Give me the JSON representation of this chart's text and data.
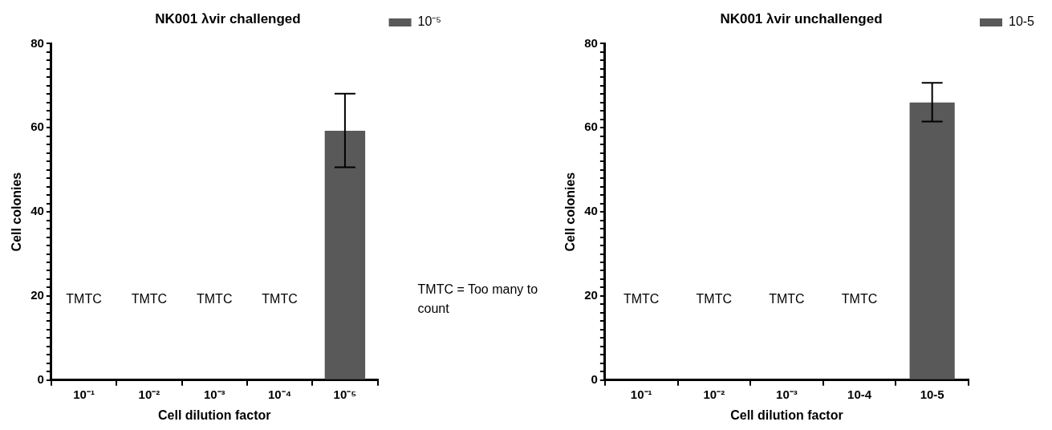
{
  "chart_data": [
    {
      "type": "bar",
      "title": "NK001 λvir challenged",
      "xlabel": "Cell dilution factor",
      "ylabel": "Cell colonies",
      "categories": [
        "10⁻¹",
        "10⁻²",
        "10⁻³",
        "10⁻⁴",
        "10⁻⁵"
      ],
      "series": [
        {
          "name": "10⁻⁵",
          "color": "#595959",
          "values": [
            null,
            null,
            null,
            null,
            59.3
          ],
          "errors": [
            null,
            null,
            null,
            null,
            [
              50.6,
              68.1
            ]
          ]
        }
      ],
      "ylim": [
        0,
        80
      ],
      "yticks": [
        0,
        {
          "value": 2,
          "label": null
        },
        {
          "value": 4,
          "label": null
        },
        {
          "value": 6,
          "label": null
        },
        {
          "value": 8,
          "label": null
        },
        {
          "value": 10,
          "label": null
        },
        {
          "value": 12,
          "label": null
        },
        {
          "value": 14,
          "label": null
        },
        {
          "value": 16,
          "label": null
        },
        {
          "value": 18,
          "label": null
        },
        20,
        {
          "value": 22,
          "label": null
        },
        {
          "value": 24,
          "label": null
        },
        {
          "value": 26,
          "label": null
        },
        {
          "value": 28,
          "label": null
        },
        {
          "value": 30,
          "label": null
        },
        {
          "value": 32,
          "label": null
        },
        {
          "value": 34,
          "label": null
        },
        {
          "value": 36,
          "label": null
        },
        {
          "value": 38,
          "label": null
        },
        40,
        {
          "value": 42,
          "label": null
        },
        {
          "value": 44,
          "label": null
        },
        {
          "value": 46,
          "label": null
        },
        {
          "value": 48,
          "label": null
        },
        {
          "value": 50,
          "label": null
        },
        {
          "value": 52,
          "label": null
        },
        {
          "value": 54,
          "label": null
        },
        {
          "value": 56,
          "label": null
        },
        {
          "value": 58,
          "label": null
        },
        60,
        {
          "value": 62,
          "label": null
        },
        {
          "value": 64,
          "label": null
        },
        {
          "value": 66,
          "label": null
        },
        {
          "value": 68,
          "label": null
        },
        {
          "value": 70,
          "label": null
        },
        {
          "value": 72,
          "label": null
        },
        {
          "value": 74,
          "label": null
        },
        {
          "value": 76,
          "label": null
        },
        {
          "value": 78,
          "label": null
        },
        80
      ],
      "legend": "top right",
      "annotations": [
        "TMTC",
        "TMTC",
        "TMTC",
        "TMTC",
        "TMTC = Too many to count"
      ]
    },
    {
      "type": "bar",
      "title": "NK001 λvir unchallenged",
      "xlabel": "Cell dilution factor",
      "ylabel": "Cell colonies",
      "categories": [
        "10⁻¹",
        "10⁻²",
        "10⁻³",
        "10-4",
        "10-5"
      ],
      "series": [
        {
          "name": "10-5",
          "color": "#595959",
          "values": [
            null,
            null,
            null,
            null,
            66.0
          ],
          "errors": [
            null,
            null,
            null,
            null,
            [
              61.5,
              70.7
            ]
          ]
        }
      ],
      "ylim": [
        0,
        80
      ],
      "yticks": [
        0,
        {
          "value": 2,
          "label": null
        },
        {
          "value": 4,
          "label": null
        },
        {
          "value": 6,
          "label": null
        },
        {
          "value": 8,
          "label": null
        },
        {
          "value": 10,
          "label": null
        },
        {
          "value": 12,
          "label": null
        },
        {
          "value": 14,
          "label": null
        },
        {
          "value": 16,
          "label": null
        },
        {
          "value": 18,
          "label": null
        },
        20,
        {
          "value": 22,
          "label": null
        },
        {
          "value": 24,
          "label": null
        },
        {
          "value": 26,
          "label": null
        },
        {
          "value": 28,
          "label": null
        },
        {
          "value": 30,
          "label": null
        },
        {
          "value": 32,
          "label": null
        },
        {
          "value": 34,
          "label": null
        },
        {
          "value": 36,
          "label": null
        },
        {
          "value": 38,
          "label": null
        },
        40,
        {
          "value": 42,
          "label": null
        },
        {
          "value": 44,
          "label": null
        },
        {
          "value": 46,
          "label": null
        },
        {
          "value": 48,
          "label": null
        },
        {
          "value": 50,
          "label": null
        },
        {
          "value": 52,
          "label": null
        },
        {
          "value": 54,
          "label": null
        },
        {
          "value": 56,
          "label": null
        },
        {
          "value": 58,
          "label": null
        },
        60,
        {
          "value": 62,
          "label": null
        },
        {
          "value": 64,
          "label": null
        },
        {
          "value": 66,
          "label": null
        },
        {
          "value": 68,
          "label": null
        },
        {
          "value": 70,
          "label": null
        },
        {
          "value": 72,
          "label": null
        },
        {
          "value": 74,
          "label": null
        },
        {
          "value": 76,
          "label": null
        },
        {
          "value": 78,
          "label": null
        },
        80
      ],
      "legend": "top right",
      "annotations": [
        "TMTC",
        "TMTC",
        "TMTC",
        "TMTC"
      ]
    }
  ]
}
